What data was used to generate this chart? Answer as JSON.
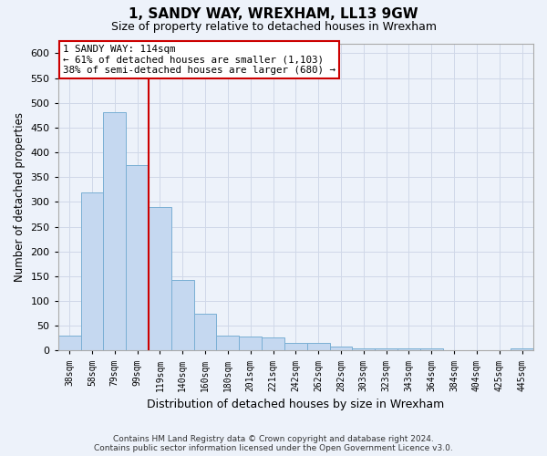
{
  "title": "1, SANDY WAY, WREXHAM, LL13 9GW",
  "subtitle": "Size of property relative to detached houses in Wrexham",
  "xlabel": "Distribution of detached houses by size in Wrexham",
  "ylabel": "Number of detached properties",
  "footer_line1": "Contains HM Land Registry data © Crown copyright and database right 2024.",
  "footer_line2": "Contains public sector information licensed under the Open Government Licence v3.0.",
  "bin_labels": [
    "38sqm",
    "58sqm",
    "79sqm",
    "99sqm",
    "119sqm",
    "140sqm",
    "160sqm",
    "180sqm",
    "201sqm",
    "221sqm",
    "242sqm",
    "262sqm",
    "282sqm",
    "303sqm",
    "323sqm",
    "343sqm",
    "364sqm",
    "384sqm",
    "404sqm",
    "425sqm",
    "445sqm"
  ],
  "bar_values": [
    31,
    320,
    481,
    375,
    289,
    143,
    75,
    31,
    29,
    27,
    16,
    16,
    8,
    5,
    5,
    4,
    5,
    0,
    0,
    0,
    5
  ],
  "bar_color": "#c5d8f0",
  "bar_edge_color": "#7aafd4",
  "grid_color": "#d0d8e8",
  "background_color": "#edf2fa",
  "red_line_index": 4,
  "annotation_line1": "1 SANDY WAY: 114sqm",
  "annotation_line2": "← 61% of detached houses are smaller (1,103)",
  "annotation_line3": "38% of semi-detached houses are larger (680) →",
  "annotation_box_color": "#ffffff",
  "annotation_border_color": "#cc0000",
  "red_line_color": "#cc0000",
  "ylim": [
    0,
    620
  ],
  "yticks": [
    0,
    50,
    100,
    150,
    200,
    250,
    300,
    350,
    400,
    450,
    500,
    550,
    600
  ]
}
